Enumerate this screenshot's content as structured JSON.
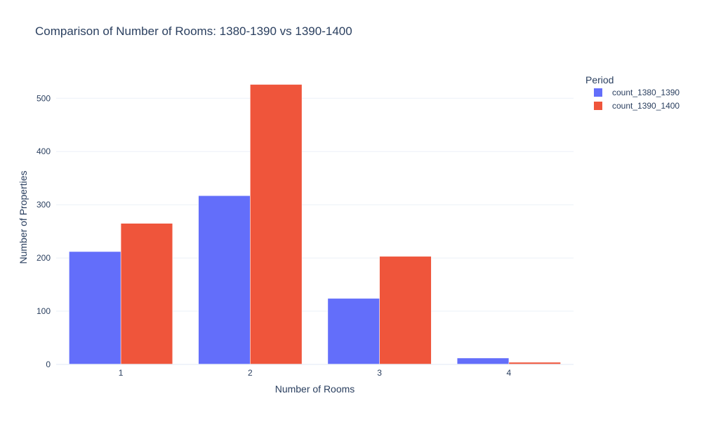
{
  "chart_data": {
    "type": "bar",
    "title": "Comparison of Number of Rooms: 1380-1390 vs 1390-1400",
    "xlabel": "Number of Rooms",
    "ylabel": "Number of Properties",
    "categories": [
      "1",
      "2",
      "3",
      "4"
    ],
    "series": [
      {
        "name": "count_1380_1390",
        "color": "#636efa",
        "values": [
          212,
          317,
          124,
          12
        ]
      },
      {
        "name": "count_1390_1400",
        "color": "#ef553b",
        "values": [
          265,
          526,
          203,
          4
        ]
      }
    ],
    "ylim": [
      0,
      553
    ],
    "yticks": [
      0,
      100,
      200,
      300,
      400,
      500
    ],
    "grid": true,
    "legend": {
      "title": "Period",
      "placement": "top-right"
    },
    "barmode": "grouped"
  }
}
